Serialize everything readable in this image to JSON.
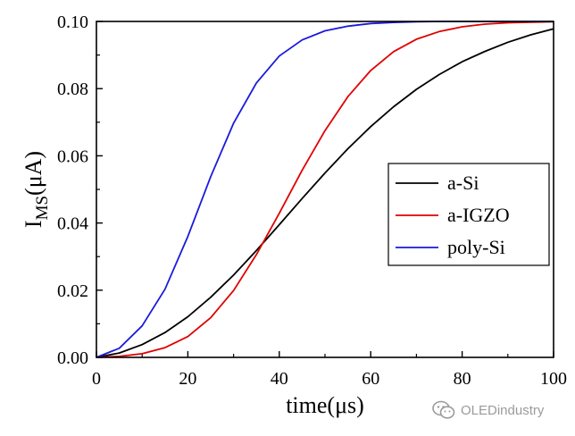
{
  "chart_data": {
    "type": "line",
    "xlabel": "time(μs)",
    "ylabel_main": "I",
    "ylabel_sub": "MS",
    "ylabel_unit": "(μA)",
    "xlim": [
      0,
      100
    ],
    "ylim": [
      0,
      0.1
    ],
    "x_ticks": [
      0,
      20,
      40,
      60,
      80,
      100
    ],
    "y_ticks": [
      "0.00",
      "0.02",
      "0.04",
      "0.06",
      "0.08",
      "0.10"
    ],
    "grid": false,
    "legend_position": "right",
    "series": [
      {
        "name": "a-Si",
        "color": "#000000",
        "x": [
          0,
          5,
          10,
          15,
          20,
          25,
          30,
          35,
          40,
          45,
          50,
          55,
          60,
          65,
          70,
          75,
          80,
          85,
          90,
          95,
          100
        ],
        "y": [
          0.0,
          0.0013,
          0.0038,
          0.0074,
          0.0121,
          0.0179,
          0.0245,
          0.0318,
          0.0395,
          0.0473,
          0.0549,
          0.0621,
          0.0687,
          0.0746,
          0.0798,
          0.0842,
          0.088,
          0.0911,
          0.0938,
          0.096,
          0.0978
        ]
      },
      {
        "name": "a-IGZO",
        "color": "#e00000",
        "x": [
          0,
          5,
          10,
          15,
          20,
          25,
          30,
          35,
          40,
          45,
          50,
          55,
          60,
          65,
          70,
          75,
          80,
          85,
          90,
          95,
          100
        ],
        "y": [
          0.0,
          0.0003,
          0.0011,
          0.0029,
          0.0062,
          0.0118,
          0.0199,
          0.0306,
          0.0429,
          0.0557,
          0.0675,
          0.0776,
          0.0854,
          0.091,
          0.0947,
          0.097,
          0.0984,
          0.0992,
          0.0996,
          0.0998,
          0.0999
        ]
      },
      {
        "name": "poly-Si",
        "color": "#1a1adc",
        "x": [
          0,
          5,
          10,
          15,
          20,
          25,
          30,
          35,
          40,
          45,
          50,
          55,
          60,
          65,
          70,
          75,
          80,
          85,
          90,
          95,
          100
        ],
        "y": [
          0.0,
          0.0027,
          0.0094,
          0.0203,
          0.036,
          0.0538,
          0.0697,
          0.0817,
          0.0897,
          0.0945,
          0.0972,
          0.0986,
          0.0994,
          0.0997,
          0.0999,
          0.1,
          0.1,
          0.1,
          0.1,
          0.1,
          0.1
        ]
      }
    ]
  },
  "watermark": {
    "text": "OLEDindustry",
    "icon": "wechat-icon"
  }
}
